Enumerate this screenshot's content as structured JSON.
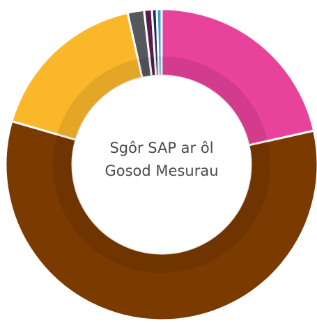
{
  "chart_data": {
    "type": "pie",
    "title": "Sgôr SAP ar ôl Gosod Mesurau",
    "values": [
      21.5,
      58,
      17,
      1.7,
      0.8,
      0.5,
      0.5
    ],
    "colors": [
      "#e8429b",
      "#7b3a00",
      "#fbb72a",
      "#55595d",
      "#5a1b4a",
      "#1d2b5e",
      "#3b9fd6"
    ],
    "donut": true
  }
}
